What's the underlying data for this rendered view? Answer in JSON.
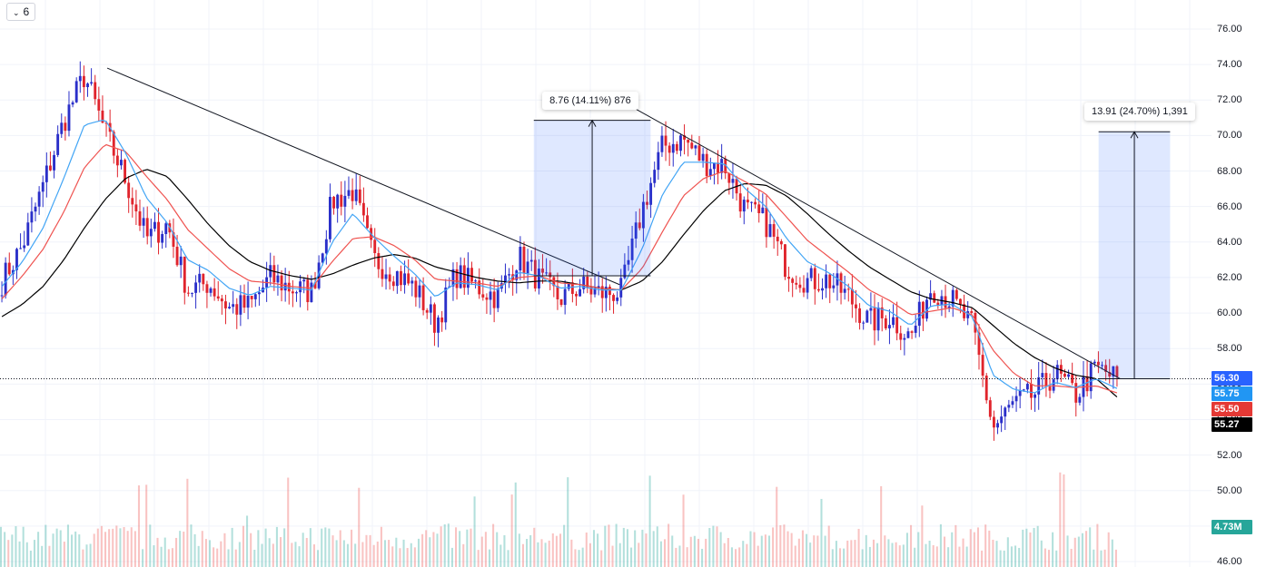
{
  "toolbar": {
    "interval_label": "6",
    "interval_icon": "chevron-down-icon"
  },
  "chart_data": {
    "type": "candlestick",
    "y_range": [
      46,
      77
    ],
    "y_ticks": [
      "76.00",
      "74.00",
      "72.00",
      "70.00",
      "68.00",
      "66.00",
      "64.00",
      "62.00",
      "60.00",
      "58.00",
      "56.00",
      "54.00",
      "52.00",
      "50.00",
      "48.00",
      "46.00"
    ],
    "price_tags": [
      {
        "label": "56.30",
        "value": 56.3,
        "color": "#2962ff"
      },
      {
        "label": "55.75",
        "value": 55.75,
        "color": "#2196f3"
      },
      {
        "label": "55.50",
        "value": 55.5,
        "color": "#e53935"
      },
      {
        "label": "55.27",
        "value": 55.27,
        "color": "#000000"
      }
    ],
    "volume_tag": {
      "label": "4.73M",
      "color": "#26a69a"
    },
    "last_price": 56.3,
    "trendlines": [
      {
        "from": [
          0.09,
          73.8
        ],
        "to": [
          0.52,
          61.6
        ]
      },
      {
        "from": [
          0.52,
          72.0
        ],
        "to": [
          0.94,
          56.3
        ]
      }
    ],
    "measurements": [
      {
        "label": "8.76 (14.11%) 876",
        "from_price": 62.1,
        "to_price": 70.86,
        "x_from": 0.448,
        "x_to": 0.546
      },
      {
        "label": "13.91 (24.70%) 1,391",
        "from_price": 56.3,
        "to_price": 70.21,
        "x_from": 0.922,
        "x_to": 0.982
      }
    ],
    "key_prices": [
      61.8,
      63.8,
      67.2,
      70.8,
      73.4,
      70.2,
      67.5,
      64.2,
      65.0,
      61.3,
      61.7,
      60.3,
      60.4,
      62.0,
      61.4,
      61.2,
      66.3,
      66.9,
      63.0,
      62.3,
      61.4,
      59.4,
      62.2,
      61.5,
      60.9,
      63.2,
      61.9,
      60.8,
      61.5,
      61.1,
      61.2,
      65.8,
      69.4,
      69.8,
      68.5,
      68.3,
      65.8,
      65.1,
      62.6,
      61.8,
      61.9,
      60.9,
      59.5,
      59.8,
      58.6,
      61.5,
      60.7,
      59.2,
      53.5,
      54.9,
      55.4,
      56.6,
      55.4,
      56.9,
      56.3
    ],
    "ma_fast": [
      61.5,
      62.9,
      64.8,
      67.6,
      70.6,
      70.9,
      69.0,
      66.5,
      65.1,
      63.0,
      62.4,
      61.4,
      61.0,
      61.5,
      61.4,
      61.3,
      64.0,
      65.6,
      64.3,
      63.2,
      62.2,
      60.9,
      61.7,
      61.6,
      61.3,
      62.3,
      62.1,
      61.4,
      61.5,
      61.3,
      61.3,
      63.6,
      66.7,
      68.5,
      68.5,
      68.4,
      67.0,
      66.0,
      64.2,
      62.9,
      62.3,
      61.5,
      60.4,
      60.1,
      59.3,
      60.4,
      60.5,
      59.8,
      56.5,
      55.7,
      55.5,
      56.1,
      55.8,
      56.3,
      55.75
    ],
    "ma_mid": [
      60.8,
      62.1,
      63.6,
      65.7,
      68.2,
      69.5,
      69.1,
      67.7,
      66.4,
      64.7,
      63.6,
      62.5,
      61.8,
      61.7,
      61.5,
      61.4,
      62.9,
      64.2,
      64.3,
      63.8,
      63.0,
      61.9,
      61.8,
      61.7,
      61.5,
      62.0,
      62.1,
      61.7,
      61.6,
      61.4,
      61.3,
      62.5,
      64.6,
      66.6,
      67.6,
      68.0,
      67.4,
      66.7,
      65.4,
      64.1,
      63.2,
      62.3,
      61.3,
      60.7,
      59.9,
      60.1,
      60.3,
      59.9,
      57.9,
      56.6,
      55.9,
      55.9,
      55.8,
      55.9,
      55.5
    ],
    "ma_slow": [
      59.8,
      60.5,
      61.5,
      63.0,
      64.8,
      66.4,
      67.6,
      68.1,
      67.7,
      66.4,
      65.0,
      63.8,
      62.9,
      62.4,
      62.1,
      61.9,
      62.2,
      62.7,
      63.1,
      63.3,
      63.1,
      62.6,
      62.3,
      62.0,
      61.8,
      61.7,
      61.8,
      61.8,
      61.6,
      61.4,
      61.3,
      61.8,
      62.9,
      64.4,
      65.8,
      66.9,
      67.3,
      67.2,
      66.6,
      65.6,
      64.5,
      63.5,
      62.6,
      61.9,
      61.2,
      60.8,
      60.6,
      60.3,
      59.3,
      58.3,
      57.5,
      56.9,
      56.5,
      56.3,
      55.27
    ]
  }
}
